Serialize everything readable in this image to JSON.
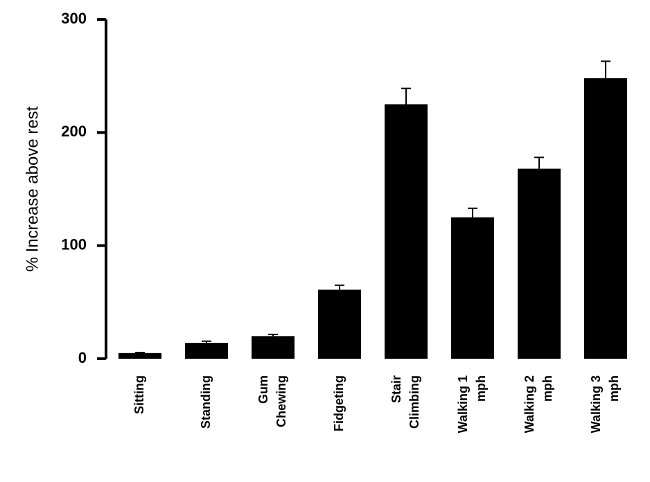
{
  "chart_data": {
    "type": "bar",
    "y_label": "% Increase above rest",
    "categories": [
      [
        "Sitting"
      ],
      [
        "Standing"
      ],
      [
        "Gum",
        "Chewing"
      ],
      [
        "Fidgeting"
      ],
      [
        "Stair",
        "Climbing"
      ],
      [
        "Walking 1",
        "mph"
      ],
      [
        "Walking 2",
        "mph"
      ],
      [
        "Walking 3",
        "mph"
      ]
    ],
    "values": [
      5,
      14,
      20,
      61,
      225,
      125,
      168,
      248
    ],
    "errors": [
      0.5,
      1.5,
      1.5,
      4,
      14,
      8,
      10,
      15
    ],
    "color": "#000000",
    "ylim": [
      0,
      300
    ],
    "yticks": [
      0,
      100,
      200,
      300
    ],
    "grid": false
  }
}
